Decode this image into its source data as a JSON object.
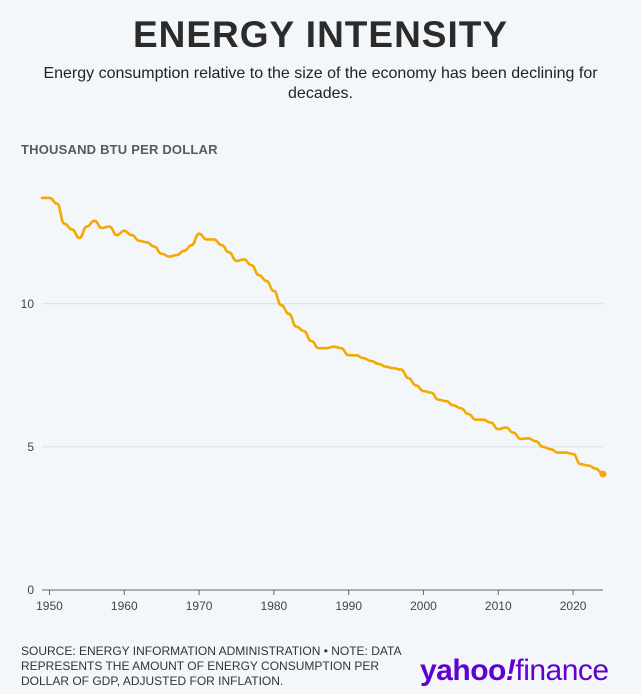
{
  "header": {
    "title": "ENERGY INTENSITY",
    "subtitle": "Energy consumption relative to the size of the economy has been declining for decades."
  },
  "chart_data": {
    "type": "line",
    "ylabel": "THOUSAND BTU PER DOLLAR",
    "xlabel": "",
    "xlim": [
      1949,
      2024
    ],
    "ylim": [
      0,
      14.5
    ],
    "xticks": [
      1950,
      1960,
      1970,
      1980,
      1990,
      2000,
      2010,
      2020
    ],
    "yticks": [
      0,
      5,
      10
    ],
    "grid": "horizontal",
    "color": "#f5a800",
    "series": [
      {
        "x": [
          1949,
          1950,
          1951,
          1952,
          1953,
          1954,
          1955,
          1956,
          1957,
          1958,
          1959,
          1960,
          1961,
          1962,
          1963,
          1964,
          1965,
          1966,
          1967,
          1968,
          1969,
          1970,
          1971,
          1972,
          1973,
          1974,
          1975,
          1976,
          1977,
          1978,
          1979,
          1980,
          1981,
          1982,
          1983,
          1984,
          1985,
          1986,
          1987,
          1988,
          1989,
          1990,
          1991,
          1992,
          1993,
          1994,
          1995,
          1996,
          1997,
          1998,
          1999,
          2000,
          2001,
          2002,
          2003,
          2004,
          2005,
          2006,
          2007,
          2008,
          2009,
          2010,
          2011,
          2012,
          2013,
          2014,
          2015,
          2016,
          2017,
          2018,
          2019,
          2020,
          2021,
          2022,
          2023,
          2024
        ],
        "y": [
          13.7,
          13.7,
          13.5,
          12.8,
          12.6,
          12.3,
          12.7,
          12.9,
          12.65,
          12.7,
          12.4,
          12.55,
          12.4,
          12.2,
          12.15,
          12.0,
          11.75,
          11.65,
          11.7,
          11.85,
          12.05,
          12.45,
          12.25,
          12.25,
          12.05,
          11.8,
          11.5,
          11.55,
          11.35,
          11.0,
          10.8,
          10.45,
          9.95,
          9.65,
          9.2,
          9.05,
          8.7,
          8.45,
          8.45,
          8.5,
          8.45,
          8.2,
          8.2,
          8.1,
          8.0,
          7.9,
          7.8,
          7.75,
          7.7,
          7.4,
          7.15,
          6.95,
          6.9,
          6.65,
          6.6,
          6.45,
          6.35,
          6.15,
          5.95,
          5.95,
          5.85,
          5.62,
          5.68,
          5.5,
          5.28,
          5.3,
          5.2,
          5.0,
          4.92,
          4.8,
          4.8,
          4.75,
          4.4,
          4.35,
          4.25,
          4.05
        ]
      }
    ]
  },
  "footnote": "SOURCE: ENERGY INFORMATION ADMINISTRATION • NOTE: DATA REPRESENTS THE AMOUNT OF ENERGY CONSUMPTION PER DOLLAR OF GDP, ADJUSTED FOR INFLATION.",
  "logo": {
    "yahoo": "yahoo",
    "excl": "!",
    "finance": "finance",
    "color": "#6001d2"
  }
}
